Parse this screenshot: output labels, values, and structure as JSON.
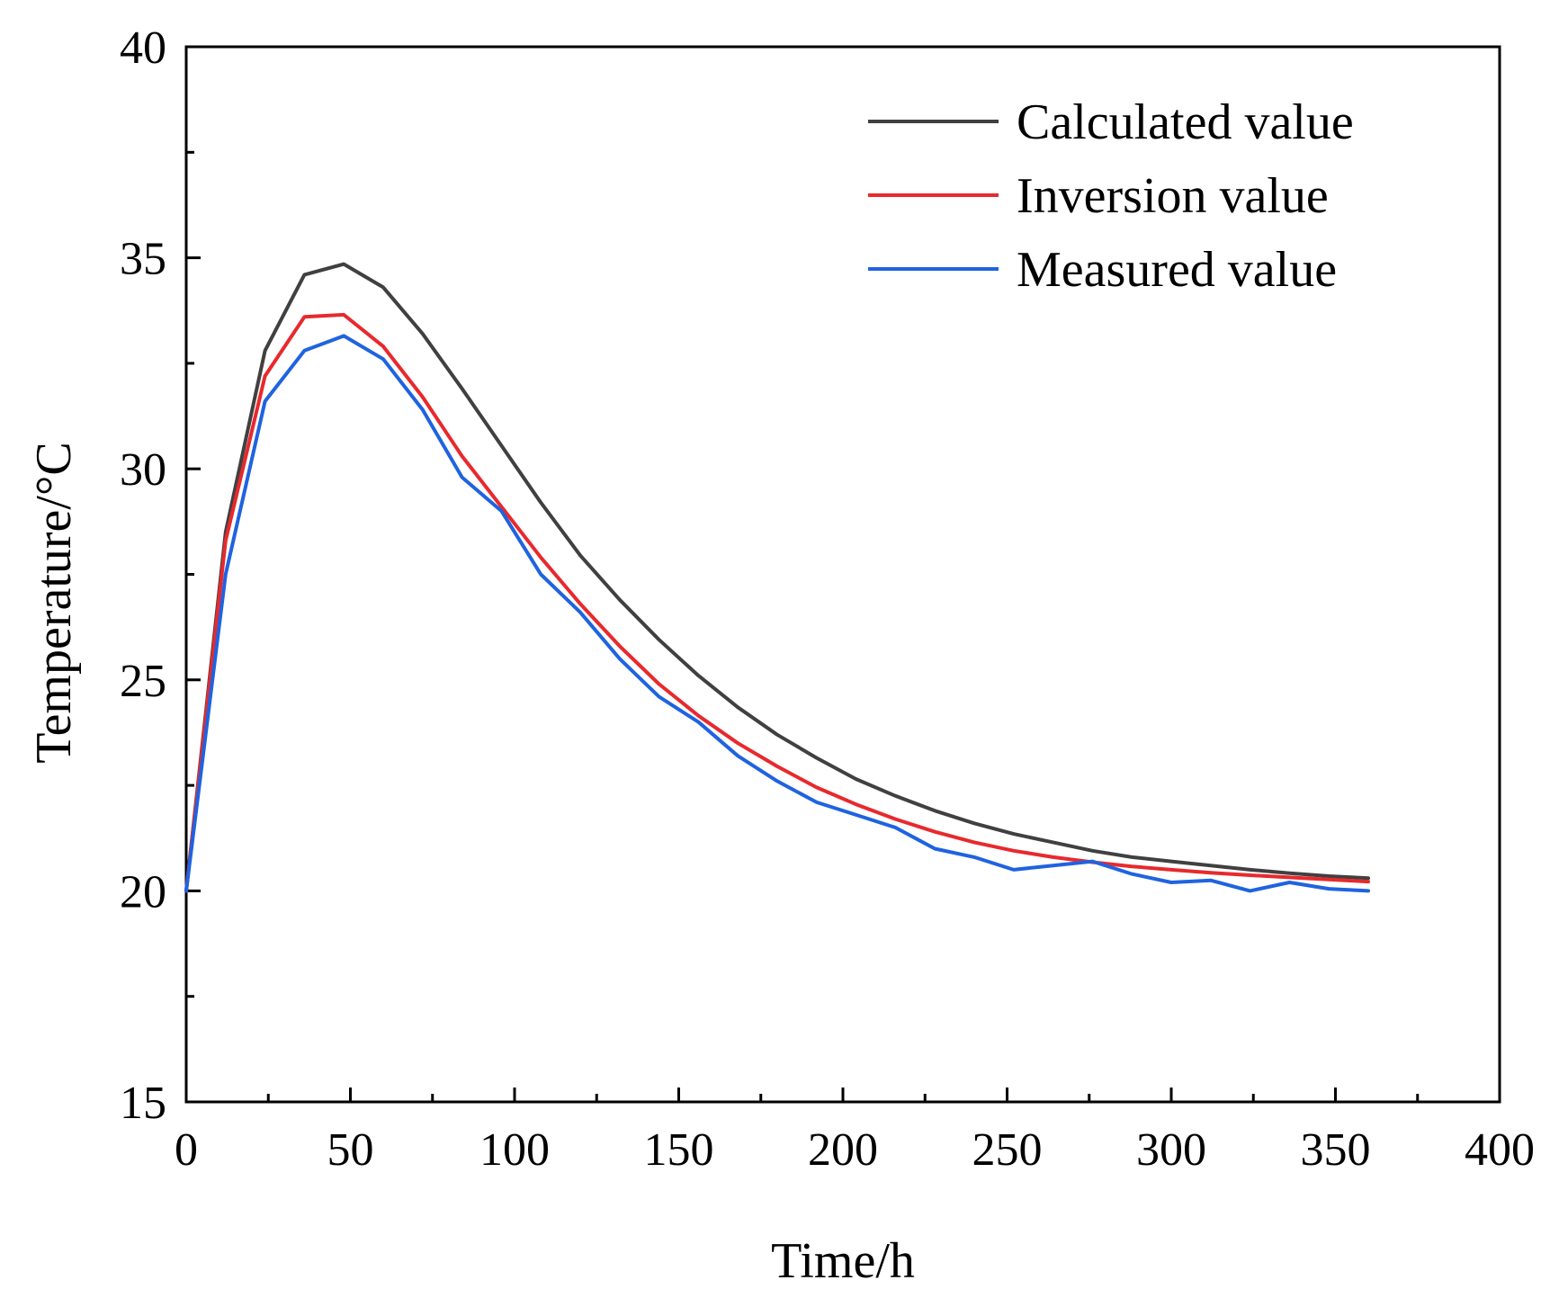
{
  "chart_data": {
    "type": "line",
    "title": "",
    "xlabel": "Time/h",
    "ylabel": "Temperature/°C",
    "xlim": [
      0,
      400
    ],
    "ylim": [
      15,
      40
    ],
    "xticks": [
      0,
      50,
      100,
      150,
      200,
      250,
      300,
      350,
      400
    ],
    "xtick_labels": [
      "0",
      "50",
      "100",
      "150",
      "200",
      "250",
      "300",
      "350",
      "400"
    ],
    "yticks": [
      15,
      20,
      25,
      30,
      35,
      40
    ],
    "ytick_labels": [
      "15",
      "20",
      "25",
      "30",
      "35",
      "40"
    ],
    "grid": false,
    "legend_position": "top-right",
    "x": [
      0,
      12,
      24,
      36,
      48,
      60,
      72,
      84,
      96,
      108,
      120,
      132,
      144,
      156,
      168,
      180,
      192,
      204,
      216,
      228,
      240,
      252,
      264,
      276,
      288,
      300,
      312,
      324,
      336,
      348,
      360
    ],
    "series": [
      {
        "name": "Calculated value",
        "color": "#404040",
        "values": [
          20.0,
          28.5,
          32.8,
          34.6,
          34.85,
          34.3,
          33.2,
          31.9,
          30.55,
          29.2,
          27.95,
          26.9,
          25.95,
          25.1,
          24.35,
          23.7,
          23.15,
          22.65,
          22.25,
          21.9,
          21.6,
          21.35,
          21.15,
          20.95,
          20.8,
          20.7,
          20.6,
          20.5,
          20.42,
          20.35,
          20.3
        ]
      },
      {
        "name": "Inversion value",
        "color": "#e8292d",
        "values": [
          20.0,
          28.3,
          32.2,
          33.6,
          33.65,
          32.9,
          31.7,
          30.3,
          29.1,
          27.9,
          26.8,
          25.8,
          24.9,
          24.15,
          23.5,
          22.95,
          22.45,
          22.05,
          21.7,
          21.4,
          21.15,
          20.95,
          20.8,
          20.68,
          20.58,
          20.5,
          20.43,
          20.37,
          20.32,
          20.27,
          20.22
        ]
      },
      {
        "name": "Measured value",
        "color": "#1f63e0",
        "values": [
          20.0,
          27.5,
          31.6,
          32.8,
          33.15,
          32.6,
          31.4,
          29.8,
          29.0,
          27.5,
          26.6,
          25.5,
          24.6,
          24.0,
          23.2,
          22.6,
          22.1,
          21.8,
          21.5,
          21.0,
          20.8,
          20.5,
          20.6,
          20.7,
          20.4,
          20.2,
          20.25,
          20.0,
          20.2,
          20.05,
          20.0
        ]
      }
    ]
  }
}
